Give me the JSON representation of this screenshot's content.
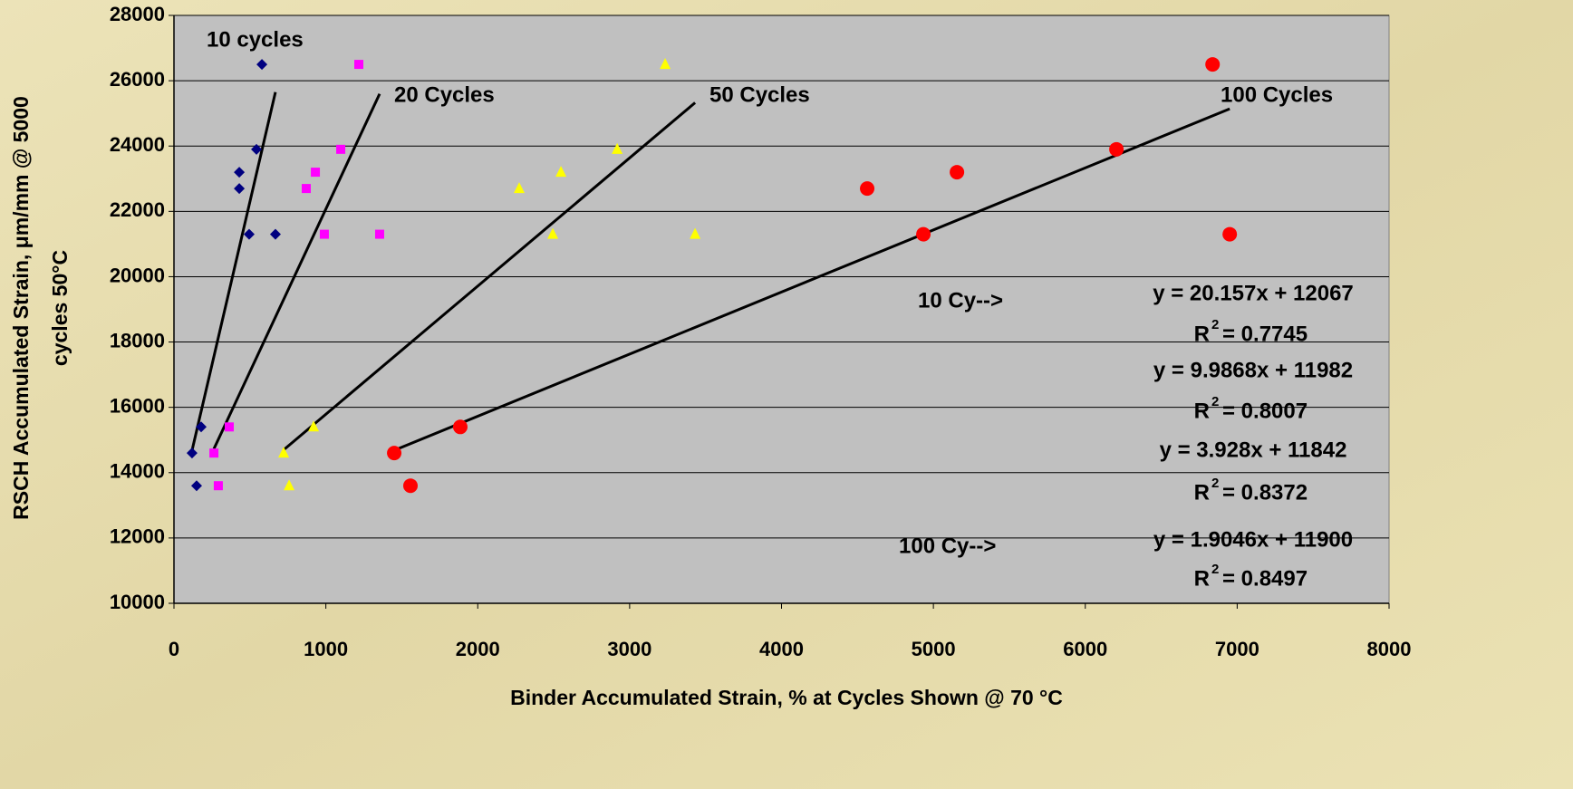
{
  "chart_data": {
    "type": "scatter",
    "x_label": "Binder Accumulated Strain, % at Cycles Shown @ 70 °C",
    "y_label": [
      "RSCH Accumulated Strain, μm/mm @ 5000",
      "cycles 50°C"
    ],
    "xlim": [
      0,
      8000
    ],
    "xticks": [
      0,
      1000,
      2000,
      3000,
      4000,
      5000,
      6000,
      7000,
      8000
    ],
    "ylim": [
      10000,
      28000
    ],
    "yticks": [
      10000,
      12000,
      14000,
      16000,
      18000,
      20000,
      22000,
      24000,
      26000,
      28000
    ],
    "grid": true,
    "trendline": true,
    "series": [
      {
        "name": "10 cycles",
        "color": "#000080",
        "marker": "diamond",
        "x": [
          119,
          179,
          149,
          579,
          543,
          430,
          430,
          495,
          668
        ],
        "values": [
          14600,
          15400,
          13600,
          26500,
          23900,
          23200,
          22700,
          21300,
          21300
        ]
      },
      {
        "name": "20 Cycles",
        "color": "#ff00ff",
        "marker": "square",
        "x": [
          263,
          364,
          292,
          1217,
          1098,
          931,
          871,
          990,
          1354
        ],
        "values": [
          14600,
          15400,
          13600,
          26500,
          23900,
          23200,
          22700,
          21300,
          21300
        ]
      },
      {
        "name": "50 Cycles",
        "color": "#ffff00",
        "marker": "triangle",
        "x": [
          722,
          919,
          758,
          3234,
          2918,
          2548,
          2273,
          2494,
          3431
        ],
        "values": [
          14600,
          15400,
          13600,
          26500,
          23900,
          23200,
          22700,
          21300,
          21300
        ]
      },
      {
        "name": "100 Cycles",
        "color": "#ff0000",
        "marker": "circle",
        "x": [
          1450,
          1885,
          1557,
          6838,
          6205,
          5155,
          4564,
          4934,
          6951
        ],
        "values": [
          14600,
          15400,
          13600,
          26500,
          23900,
          23200,
          22700,
          21300,
          21300
        ]
      }
    ],
    "equations": [
      {
        "equation": "y = 20.157x + 12067",
        "r": "R",
        "sup": "2",
        "r2": "= 0.7745"
      },
      {
        "equation": "y = 9.9868x + 11982",
        "r": "R",
        "sup": "2",
        "r2": "= 0.8007"
      },
      {
        "equation": "y = 3.928x + 11842",
        "r": "R",
        "sup": "2",
        "r2": "= 0.8372"
      },
      {
        "equation": "y = 1.9046x + 11900",
        "r": "R",
        "sup": "2",
        "r2": "= 0.8497"
      }
    ],
    "annotations": [
      "10 Cy-->",
      "100 Cy-->"
    ]
  }
}
